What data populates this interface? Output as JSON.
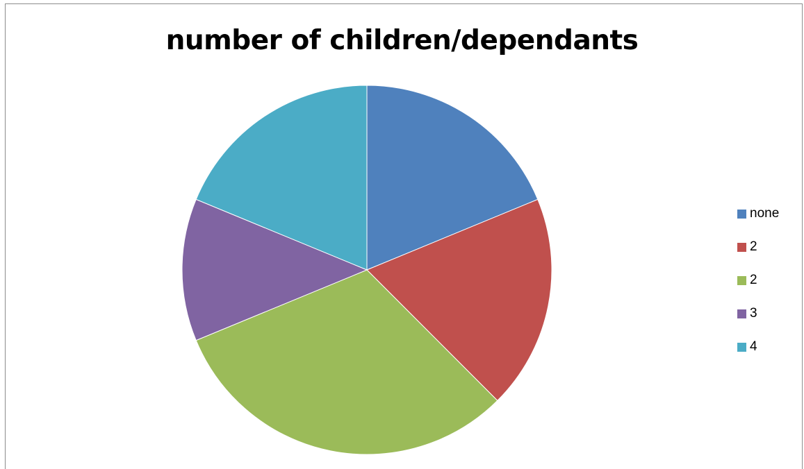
{
  "chart_data": {
    "type": "pie",
    "title": "number of children/dependants",
    "categories": [
      "none",
      "2",
      "2",
      "3",
      "4"
    ],
    "values": [
      20,
      20,
      33.3,
      13.3,
      20
    ],
    "colors": [
      "#4F81BD",
      "#C0504D",
      "#9BBB59",
      "#8064A2",
      "#4BACC6"
    ],
    "legend_position": "right",
    "start_angle_deg": 0,
    "direction": "clockwise"
  }
}
